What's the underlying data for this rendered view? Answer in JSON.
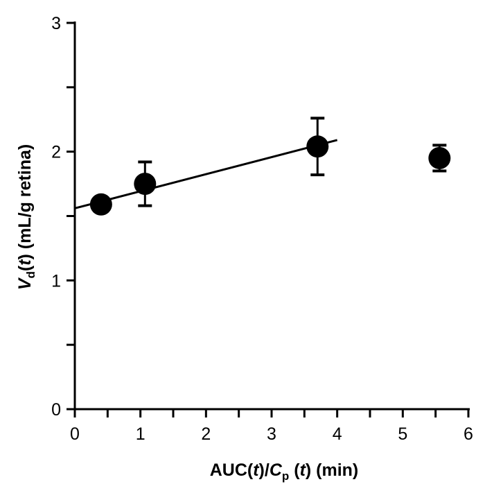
{
  "chart_data": {
    "type": "scatter",
    "xlabel": {
      "prefix": "AUC(",
      "t1": "t",
      "mid": ")/",
      "c": "C",
      "csub": "p",
      "open": " (",
      "t2": "t",
      "suffix": ") (min)"
    },
    "ylabel": {
      "v": "V",
      "vsub": "d",
      "open": "(",
      "t": "t",
      "suffix": ") (mL/g retina)"
    },
    "xlim": [
      0,
      6
    ],
    "ylim": [
      0,
      3
    ],
    "xticks": [
      0,
      1,
      2,
      3,
      4,
      5,
      6
    ],
    "yticks": [
      0,
      1,
      2,
      3
    ],
    "points": [
      {
        "x": 0.4,
        "y": 1.59,
        "err": 0
      },
      {
        "x": 1.07,
        "y": 1.75,
        "err": 0.17
      },
      {
        "x": 3.7,
        "y": 2.04,
        "err": 0.22
      },
      {
        "x": 5.56,
        "y": 1.95,
        "err": 0.1
      }
    ],
    "fit_line": {
      "x": [
        0,
        4.0
      ],
      "y": [
        1.56,
        2.09
      ]
    },
    "grid": false,
    "legend": "none",
    "color": "#000000"
  }
}
